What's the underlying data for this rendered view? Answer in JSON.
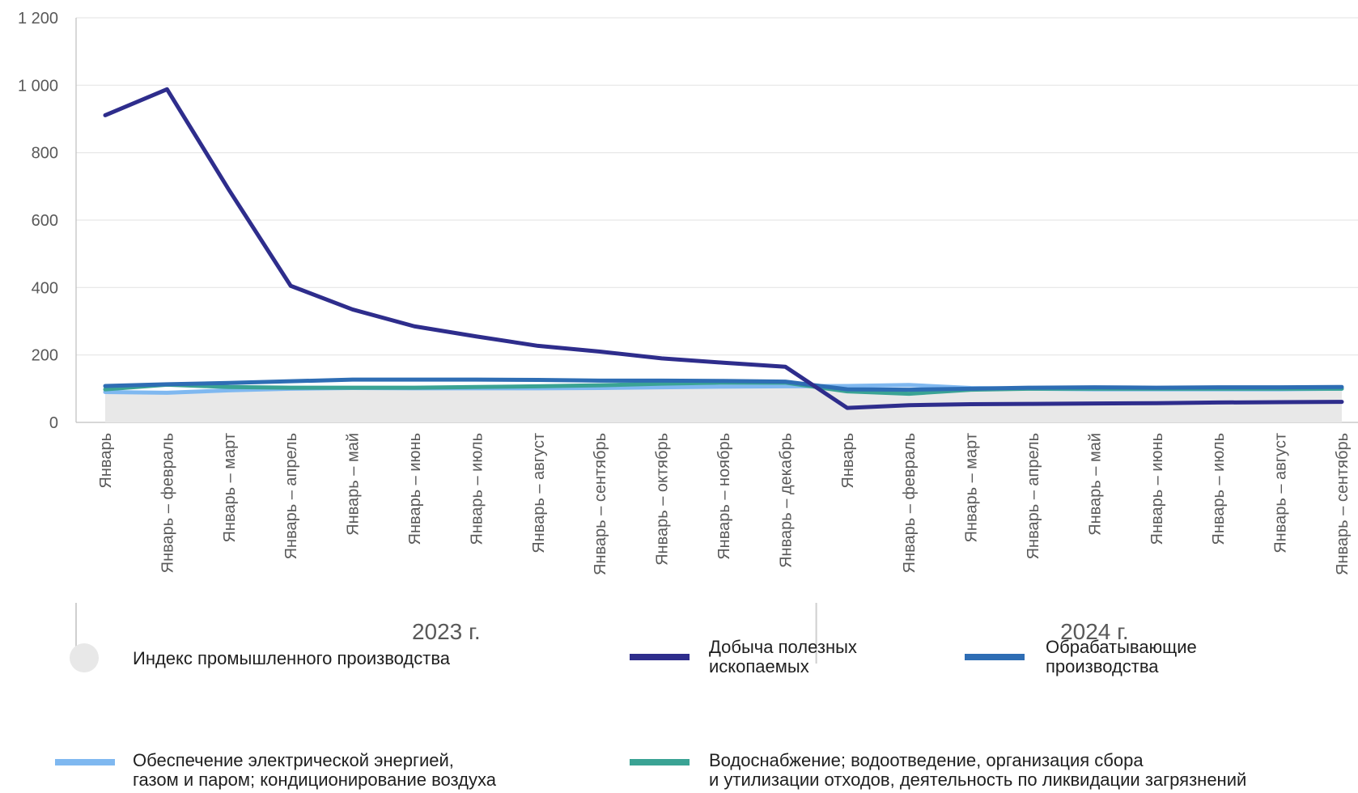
{
  "chart_data": {
    "type": "line",
    "ylim": [
      0,
      1200
    ],
    "yticks": [
      "0",
      "200",
      "400",
      "600",
      "800",
      "1 000",
      "1 200"
    ],
    "yticks_values": [
      0,
      200,
      400,
      600,
      800,
      1000,
      1200
    ],
    "categories": [
      "Январь",
      "Январь – февраль",
      "Январь – март",
      "Январь – апрель",
      "Январь – май",
      "Январь – июнь",
      "Январь – июль",
      "Январь – август",
      "Январь – сентябрь",
      "Январь – октябрь",
      "Январь – ноябрь",
      "Январь – декабрь",
      "Январь",
      "Январь – февраль",
      "Январь – март",
      "Январь – апрель",
      "Январь – май",
      "Январь – июнь",
      "Январь – июль",
      "Январь – август",
      "Январь – сентябрь"
    ],
    "groups": [
      {
        "label": "2023 г.",
        "count": 12
      },
      {
        "label": "2024 г.",
        "count": 9
      }
    ],
    "grid": true,
    "series": [
      {
        "name": "Индекс промышленного производства",
        "kind": "area",
        "color": "#e8e8e8",
        "values": [
          92,
          94,
          96,
          98,
          99,
          100,
          100,
          101,
          102,
          103,
          104,
          104,
          100,
          100,
          98,
          98,
          97,
          97,
          97,
          97,
          98
        ]
      },
      {
        "name": "Обеспечение электрической энергией, газом и паром; кондиционирование воздуха",
        "kind": "line",
        "color": "#7fb8f0",
        "values": [
          90,
          88,
          95,
          100,
          102,
          101,
          101,
          101,
          102,
          104,
          106,
          107,
          108,
          111,
          102,
          100,
          98,
          98,
          98,
          98,
          100
        ]
      },
      {
        "name": "Водоснабжение; водоотведение, организация сбора и утилизации отходов, деятельность по ликвидации загрязнений",
        "kind": "line",
        "color": "#3aa394",
        "values": [
          98,
          112,
          105,
          103,
          103,
          103,
          105,
          107,
          110,
          115,
          118,
          118,
          92,
          85,
          97,
          100,
          100,
          100,
          100,
          100,
          100
        ]
      },
      {
        "name": "Обрабатывающие производства",
        "kind": "line",
        "color": "#2e6db4",
        "values": [
          108,
          113,
          117,
          122,
          127,
          127,
          127,
          126,
          124,
          124,
          123,
          121,
          98,
          97,
          100,
          103,
          104,
          103,
          104,
          104,
          105
        ]
      },
      {
        "name": "Добыча полезных ископаемых",
        "kind": "line",
        "color": "#2e2d8c",
        "values": [
          911,
          988,
          690,
          405,
          335,
          285,
          255,
          227,
          210,
          190,
          177,
          165,
          43,
          51,
          54,
          55,
          56,
          57,
          59,
          60,
          61
        ]
      }
    ]
  },
  "legend": {
    "items": [
      {
        "label": "Индекс промышленного производства"
      },
      {
        "label_lines": [
          "Добыча полезных",
          "ископаемых"
        ]
      },
      {
        "label_lines": [
          "Обрабатывающие",
          "производства"
        ]
      },
      {
        "label_lines": [
          "Обеспечение электрической энергией,",
          "газом и паром; кондиционирование воздуха"
        ]
      },
      {
        "label_lines": [
          "Водоснабжение; водоотведение, организация сбора",
          "и утилизации отходов, деятельность по ликвидации загрязнений"
        ]
      }
    ]
  }
}
